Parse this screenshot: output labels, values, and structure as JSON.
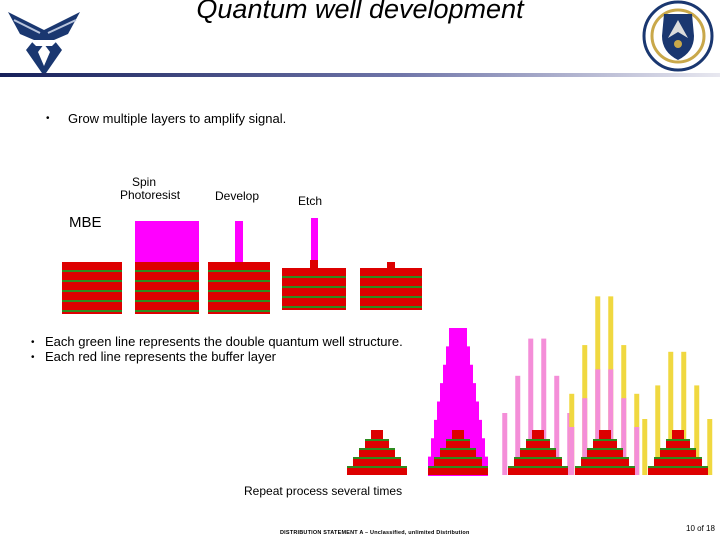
{
  "slide": {
    "title": "Quantum well development",
    "bullet_top": "Grow multiple layers to amplify signal.",
    "bullets_bottom": [
      "Each green line represents the double quantum well structure.",
      "Each red line represents the buffer layer"
    ],
    "bullet_symbol": "•",
    "steps": {
      "mbe": "MBE",
      "spin_line1": "Spin",
      "spin_line2": "Photoresist",
      "develop": "Develop",
      "etch": "Etch"
    },
    "repeat_caption": "Repeat process several times",
    "footer": {
      "statement": "DISTRIBUTION STATEMENT A – Unclassified, unlimited Distribution",
      "page": "10 of 18"
    },
    "logos": {
      "left": "air-force-wings-logo",
      "right": "afrl-shield-emblem"
    }
  },
  "colors": {
    "red": "#dd0000",
    "green": "#2e8b1e",
    "magenta": "#ff00ff",
    "pink": "#f48ed8",
    "yellow": "#f0d840",
    "navy": "#1a3770"
  }
}
